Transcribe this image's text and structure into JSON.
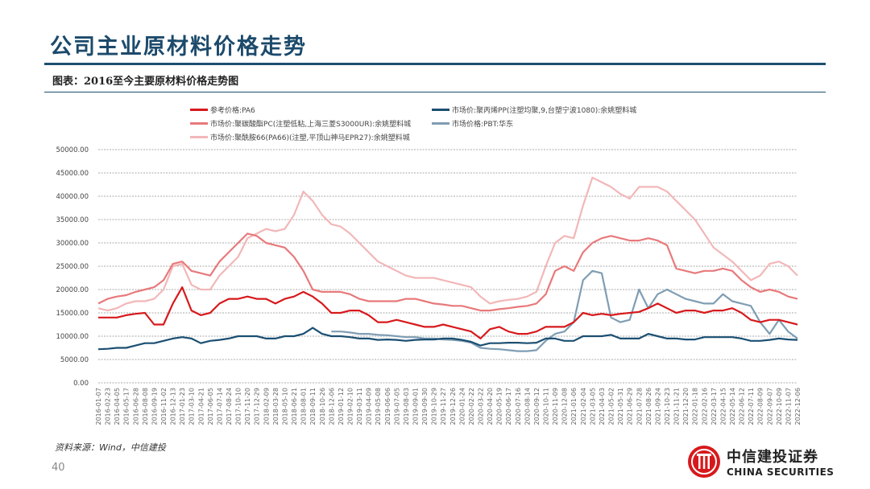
{
  "header": {
    "title": "公司主业原材料价格走势",
    "subtitle": "图表：2016至今主要原材料价格走势图"
  },
  "footer": {
    "source": "资料来源：Wind，中信建投",
    "page_number": "40",
    "logo_cn": "中信建投证券",
    "logo_en": "CHINA SECURITIES"
  },
  "colors": {
    "pa6": "#d7191c",
    "pp": "#1b4f72",
    "pc": "#e8797b",
    "pbt": "#7f9db3",
    "pa66": "#f2b7b8"
  },
  "chart_data": {
    "type": "line",
    "title": "2016至今主要原材料价格走势图",
    "xlabel": "",
    "ylabel": "",
    "ylim": [
      0,
      50000
    ],
    "yticks": [
      "0.00",
      "5000.00",
      "10000.00",
      "15000.00",
      "20000.00",
      "25000.00",
      "30000.00",
      "35000.00",
      "40000.00",
      "45000.00",
      "50000.00"
    ],
    "grid": true,
    "legend_position": "top",
    "x": [
      "2016-01-07",
      "2016-02-23",
      "2016-04-05",
      "2016-05-17",
      "2016-06-28",
      "2016-08-08",
      "2016-09-19",
      "2016-11-02",
      "2016-12-13",
      "2017-01-23",
      "2017-03-10",
      "2017-04-21",
      "2017-06-05",
      "2017-07-14",
      "2017-08-24",
      "2017-10-10",
      "2017-11-20",
      "2017-12-29",
      "2018-02-09",
      "2018-03-28",
      "2018-05-10",
      "2018-06-21",
      "2018-08-01",
      "2018-09-11",
      "2018-10-26",
      "2018-12-06",
      "2019-01-12",
      "2019-02-10",
      "2019-03-11",
      "2019-04-09",
      "2019-05-08",
      "2019-06-06",
      "2019-07-05",
      "2019-08-03",
      "2019-09-01",
      "2019-09-30",
      "2019-10-29",
      "2019-11-27",
      "2019-12-26",
      "2020-01-24",
      "2020-02-22",
      "2020-03-22",
      "2020-04-20",
      "2020-05-19",
      "2020-06-17",
      "2020-07-16",
      "2020-08-14",
      "2020-09-12",
      "2020-10-11",
      "2020-11-09",
      "2020-12-08",
      "2021-01-06",
      "2021-02-04",
      "2021-03-05",
      "2021-04-03",
      "2021-05-02",
      "2021-05-31",
      "2021-06-29",
      "2021-07-28",
      "2021-08-26",
      "2021-09-24",
      "2021-10-23",
      "2021-11-21",
      "2021-12-20",
      "2022-01-18",
      "2022-02-16",
      "2022-03-17",
      "2022-04-15",
      "2022-05-14",
      "2022-06-12",
      "2022-07-11",
      "2022-08-09",
      "2022-09-07",
      "2022-10-09",
      "2022-11-07",
      "2022-12-06"
    ],
    "series": [
      {
        "key": "pa6",
        "name": "参考价格:PA6",
        "values": [
          14000,
          14000,
          14000,
          14500,
          14800,
          15000,
          12500,
          12500,
          17000,
          20500,
          15500,
          14500,
          15000,
          17000,
          18000,
          18000,
          18500,
          18000,
          18000,
          17000,
          18000,
          18500,
          19500,
          18500,
          17000,
          15000,
          15000,
          15500,
          15500,
          14500,
          13000,
          13000,
          13500,
          13000,
          12500,
          12000,
          12000,
          12500,
          12000,
          11500,
          11000,
          9500,
          11500,
          12000,
          11000,
          10500,
          10500,
          11000,
          12000,
          12000,
          12000,
          13000,
          15000,
          14500,
          14800,
          14500,
          14800,
          15000,
          15200,
          16000,
          17000,
          16000,
          15000,
          15500,
          15500,
          15000,
          15500,
          15500,
          16000,
          15000,
          13500,
          13000,
          13500,
          13500,
          13000,
          12500
        ]
      },
      {
        "key": "pp",
        "name": "市场价:聚丙烯PP(注塑均聚,9,台塑宁波1080):余姚塑料城",
        "values": [
          7200,
          7300,
          7500,
          7500,
          8000,
          8500,
          8500,
          9000,
          9500,
          9800,
          9500,
          8500,
          9000,
          9200,
          9500,
          10000,
          10000,
          10000,
          9500,
          9500,
          10000,
          10000,
          10500,
          11800,
          10500,
          10000,
          10000,
          9800,
          9500,
          9500,
          9200,
          9300,
          9200,
          9000,
          9200,
          9300,
          9300,
          9500,
          9500,
          9200,
          8800,
          8000,
          8500,
          8500,
          8600,
          8600,
          8500,
          8600,
          9500,
          9500,
          9000,
          9000,
          10000,
          10000,
          10000,
          10300,
          9500,
          9500,
          9500,
          10500,
          10000,
          9500,
          9500,
          9300,
          9300,
          9800,
          9800,
          9800,
          9800,
          9500,
          9000,
          9000,
          9200,
          9500,
          9300,
          9200
        ]
      },
      {
        "key": "pc",
        "name": "市场价:聚碳酸酯PC(注塑低粘,上海三菱S3000UR):余姚塑料城",
        "values": [
          17000,
          18000,
          18500,
          18800,
          19500,
          20000,
          20500,
          22000,
          25500,
          26000,
          24000,
          23500,
          23000,
          26000,
          28000,
          30000,
          32000,
          31500,
          30000,
          29500,
          29000,
          27000,
          24000,
          20000,
          19500,
          19500,
          19500,
          19000,
          18000,
          17500,
          17500,
          17500,
          17500,
          18000,
          18000,
          17500,
          17000,
          16800,
          16500,
          16500,
          16000,
          15500,
          15500,
          15800,
          16000,
          16300,
          16500,
          17000,
          19000,
          24000,
          25000,
          24000,
          28000,
          30000,
          31000,
          31500,
          31000,
          30500,
          30500,
          31000,
          30500,
          29500,
          24500,
          24000,
          23500,
          24000,
          24000,
          24500,
          24000,
          22000,
          20500,
          19500,
          20000,
          19500,
          18500,
          18000
        ]
      },
      {
        "key": "pbt",
        "name": "市场价格:PBT:华东",
        "values": [
          null,
          null,
          null,
          null,
          null,
          null,
          null,
          null,
          null,
          null,
          null,
          null,
          null,
          null,
          null,
          null,
          null,
          null,
          null,
          null,
          null,
          null,
          null,
          null,
          null,
          11000,
          11000,
          10800,
          10500,
          10500,
          10300,
          10200,
          10000,
          9800,
          9800,
          9500,
          9500,
          9300,
          9200,
          9000,
          8600,
          7500,
          7300,
          7200,
          7000,
          6800,
          6800,
          7000,
          9000,
          10500,
          11000,
          13000,
          22000,
          24000,
          23500,
          14000,
          13000,
          13500,
          20000,
          16000,
          19000,
          20000,
          19000,
          18000,
          17500,
          17000,
          17000,
          19000,
          17500,
          17000,
          16500,
          13000,
          10500,
          13500,
          11000,
          9500
        ]
      },
      {
        "key": "pa66",
        "name": "市场价:聚酰胺66(PA66)(注塑,平顶山神马EPR27):余姚塑料城",
        "values": [
          16000,
          15500,
          16000,
          17000,
          17500,
          17500,
          18000,
          20000,
          25000,
          25500,
          21000,
          20000,
          20000,
          23000,
          25000,
          27000,
          31000,
          32000,
          33000,
          32500,
          33000,
          36000,
          41000,
          39000,
          36000,
          34000,
          33500,
          32000,
          30000,
          28000,
          26000,
          25000,
          24000,
          23000,
          22500,
          22500,
          22500,
          22000,
          21500,
          21000,
          20500,
          18500,
          17000,
          17500,
          17800,
          18000,
          18500,
          19500,
          25000,
          30000,
          31500,
          31000,
          38000,
          44000,
          43000,
          42000,
          40500,
          39500,
          42000,
          42000,
          42000,
          41000,
          39000,
          37000,
          35000,
          32000,
          29000,
          27500,
          26000,
          24000,
          22000,
          23000,
          25500,
          26000,
          25000,
          23000
        ]
      }
    ]
  }
}
